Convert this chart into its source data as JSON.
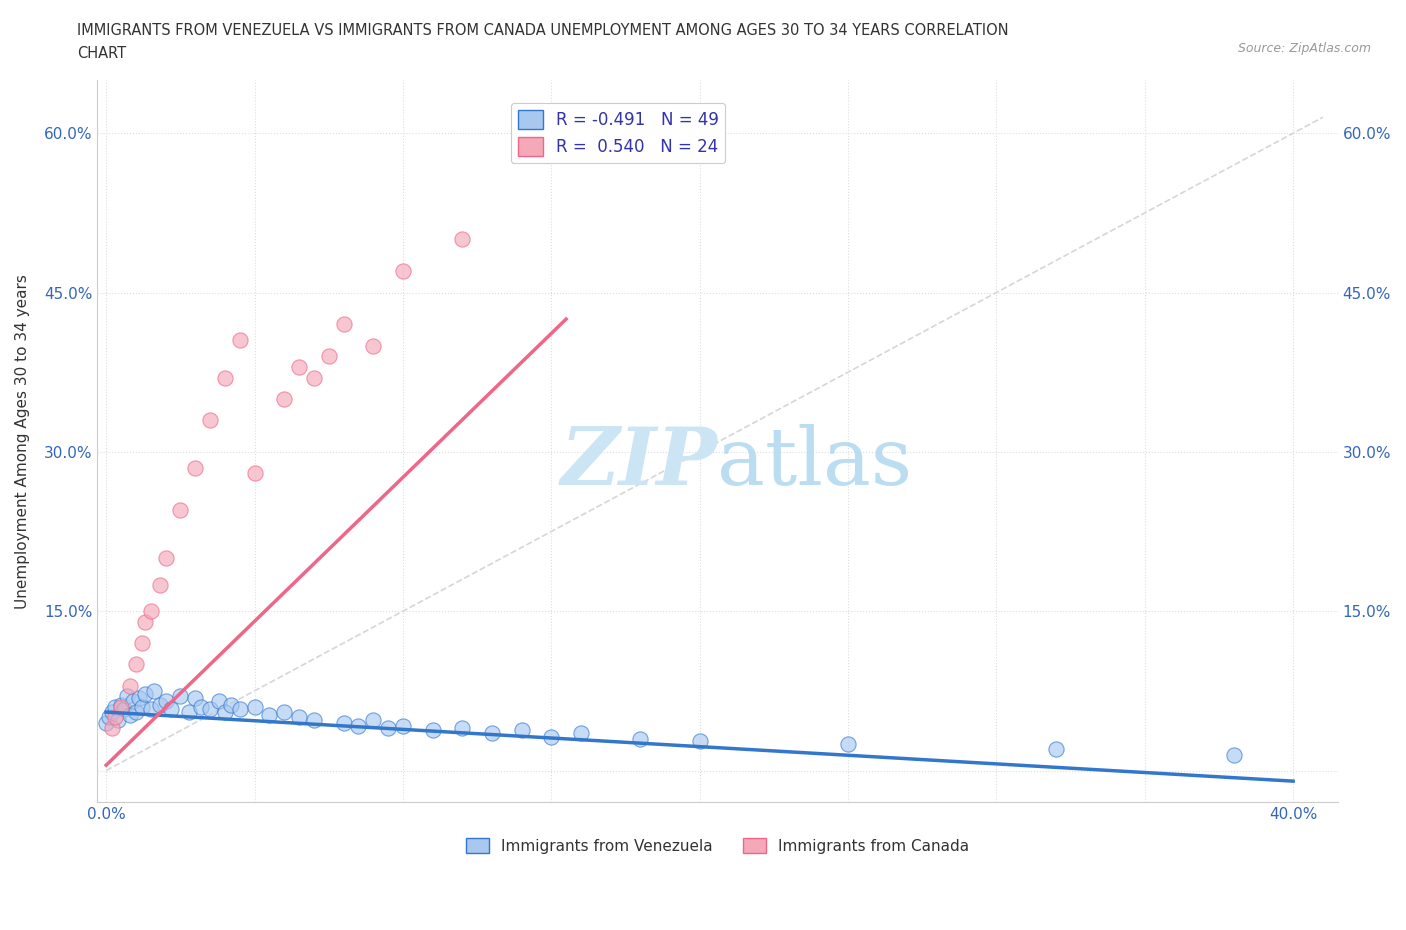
{
  "title_line1": "IMMIGRANTS FROM VENEZUELA VS IMMIGRANTS FROM CANADA UNEMPLOYMENT AMONG AGES 30 TO 34 YEARS CORRELATION",
  "title_line2": "CHART",
  "source_text": "Source: ZipAtlas.com",
  "ylabel": "Unemployment Among Ages 30 to 34 years",
  "xlim": [
    -0.003,
    0.415
  ],
  "ylim": [
    -0.03,
    0.65
  ],
  "color_venezuela": "#a8c8f0",
  "color_canada": "#f4a8b8",
  "color_trend_venezuela": "#3377cc",
  "color_trend_canada": "#ee6688",
  "color_diagonal": "#cccccc",
  "background_color": "#ffffff",
  "grid_color": "#dddddd",
  "watermark_color": "#cce5f5",
  "venezuela_x": [
    0.0,
    0.001,
    0.002,
    0.003,
    0.004,
    0.005,
    0.006,
    0.007,
    0.008,
    0.009,
    0.01,
    0.011,
    0.012,
    0.013,
    0.015,
    0.016,
    0.018,
    0.02,
    0.022,
    0.025,
    0.028,
    0.03,
    0.032,
    0.035,
    0.038,
    0.04,
    0.042,
    0.045,
    0.05,
    0.055,
    0.06,
    0.065,
    0.07,
    0.08,
    0.085,
    0.09,
    0.095,
    0.1,
    0.11,
    0.12,
    0.13,
    0.14,
    0.15,
    0.16,
    0.18,
    0.2,
    0.25,
    0.32,
    0.38
  ],
  "venezuela_y": [
    0.045,
    0.05,
    0.055,
    0.06,
    0.048,
    0.062,
    0.058,
    0.07,
    0.052,
    0.065,
    0.055,
    0.068,
    0.06,
    0.072,
    0.058,
    0.075,
    0.062,
    0.065,
    0.058,
    0.07,
    0.055,
    0.068,
    0.06,
    0.058,
    0.065,
    0.055,
    0.062,
    0.058,
    0.06,
    0.052,
    0.055,
    0.05,
    0.048,
    0.045,
    0.042,
    0.048,
    0.04,
    0.042,
    0.038,
    0.04,
    0.035,
    0.038,
    0.032,
    0.035,
    0.03,
    0.028,
    0.025,
    0.02,
    0.015
  ],
  "canada_x": [
    0.002,
    0.003,
    0.005,
    0.008,
    0.01,
    0.012,
    0.013,
    0.015,
    0.018,
    0.02,
    0.025,
    0.03,
    0.035,
    0.04,
    0.045,
    0.05,
    0.06,
    0.065,
    0.07,
    0.075,
    0.08,
    0.09,
    0.1,
    0.12
  ],
  "canada_y": [
    0.04,
    0.05,
    0.06,
    0.08,
    0.1,
    0.12,
    0.14,
    0.15,
    0.175,
    0.2,
    0.245,
    0.285,
    0.33,
    0.37,
    0.405,
    0.28,
    0.35,
    0.38,
    0.37,
    0.39,
    0.42,
    0.4,
    0.47,
    0.5
  ],
  "trend_ven_x0": 0.0,
  "trend_ven_y0": 0.055,
  "trend_ven_x1": 0.4,
  "trend_ven_y1": -0.01,
  "trend_can_x0": 0.0,
  "trend_can_y0": 0.005,
  "trend_can_x1": 0.155,
  "trend_can_y1": 0.425
}
